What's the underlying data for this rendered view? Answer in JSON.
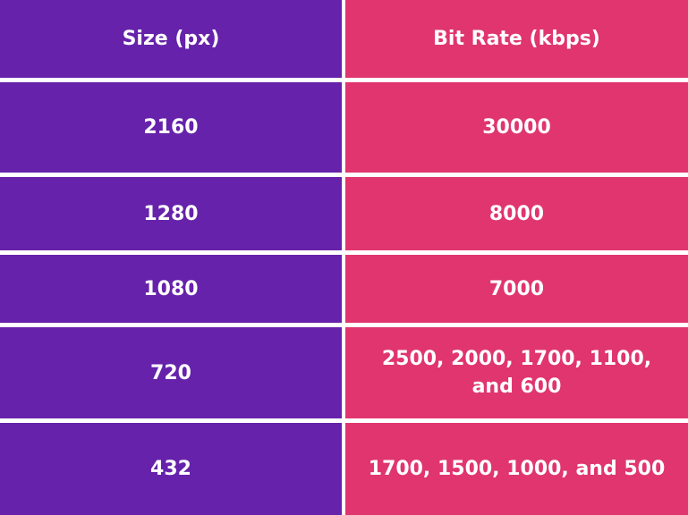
{
  "colors": {
    "size_column": "#6622AA",
    "bitrate_column": "#E0356E",
    "divider": "#FFFFFF"
  },
  "table": {
    "headers": {
      "size": "Size (px)",
      "bitrate": "Bit Rate (kbps)"
    },
    "rows": [
      {
        "size": "2160",
        "bitrate": "30000"
      },
      {
        "size": "1280",
        "bitrate": "8000"
      },
      {
        "size": "1080",
        "bitrate": "7000"
      },
      {
        "size": "720",
        "bitrate": "2500, 2000, 1700, 1100, and 600"
      },
      {
        "size": "432",
        "bitrate": "1700, 1500, 1000, and 500"
      }
    ]
  }
}
